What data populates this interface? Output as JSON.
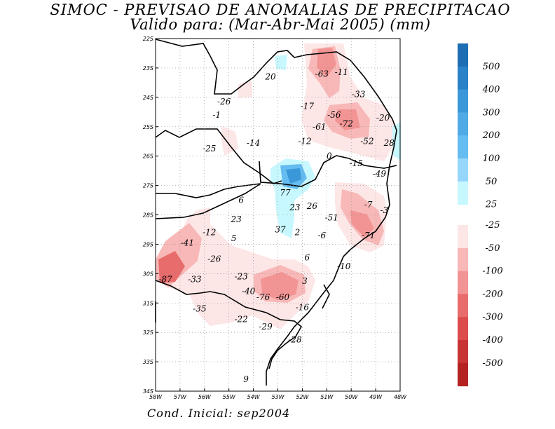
{
  "header": {
    "title_line1": "SIMOC - PREVISAO DE ANOMALIAS DE PRECIPITACAO",
    "title_line2": "Valido para: (Mar-Abr-Mai 2005) (mm)"
  },
  "footer": {
    "initial_condition": "Cond. Inicial: sep2004"
  },
  "map": {
    "lon_range": [
      -58,
      -48
    ],
    "lat_range": [
      -34,
      -22
    ],
    "lon_ticks": [
      "58W",
      "57W",
      "56W",
      "55W",
      "54W",
      "53W",
      "52W",
      "51W",
      "50W",
      "49W",
      "48W"
    ],
    "lat_ticks": [
      "22S",
      "23S",
      "24S",
      "25S",
      "26S",
      "27S",
      "28S",
      "29S",
      "30S",
      "31S",
      "32S",
      "33S",
      "34S"
    ],
    "grid": true,
    "anomaly_labels": [
      {
        "text": "20",
        "lon": -53.3,
        "lat": -23.3
      },
      {
        "text": "-63",
        "lon": -51.2,
        "lat": -23.2
      },
      {
        "text": "-11",
        "lon": -50.4,
        "lat": -23.15
      },
      {
        "text": "-33",
        "lon": -49.7,
        "lat": -23.9
      },
      {
        "text": "-26",
        "lon": -55.2,
        "lat": -24.15
      },
      {
        "text": "-17",
        "lon": -51.8,
        "lat": -24.3
      },
      {
        "text": "-1",
        "lon": -55.5,
        "lat": -24.6
      },
      {
        "text": "-56",
        "lon": -50.7,
        "lat": -24.6
      },
      {
        "text": "-20",
        "lon": -48.7,
        "lat": -24.7
      },
      {
        "text": "-61",
        "lon": -51.3,
        "lat": -25.0
      },
      {
        "text": "-72",
        "lon": -50.2,
        "lat": -24.9
      },
      {
        "text": "-14",
        "lon": -54.0,
        "lat": -25.55
      },
      {
        "text": "-12",
        "lon": -51.9,
        "lat": -25.5
      },
      {
        "text": "-52",
        "lon": -49.35,
        "lat": -25.5
      },
      {
        "text": "-25",
        "lon": -55.8,
        "lat": -25.75
      },
      {
        "text": "28",
        "lon": -48.45,
        "lat": -25.55
      },
      {
        "text": "0",
        "lon": -50.9,
        "lat": -26.0
      },
      {
        "text": "-15",
        "lon": -49.8,
        "lat": -26.25
      },
      {
        "text": "-49",
        "lon": -48.85,
        "lat": -26.6
      },
      {
        "text": "77",
        "lon": -52.7,
        "lat": -27.25
      },
      {
        "text": "6",
        "lon": -54.5,
        "lat": -27.5
      },
      {
        "text": "23",
        "lon": -52.3,
        "lat": -27.75
      },
      {
        "text": "26",
        "lon": -51.6,
        "lat": -27.7
      },
      {
        "text": "-7",
        "lon": -49.3,
        "lat": -27.65
      },
      {
        "text": "-3",
        "lon": -48.65,
        "lat": -27.85
      },
      {
        "text": "-51",
        "lon": -50.8,
        "lat": -28.1
      },
      {
        "text": "23",
        "lon": -54.7,
        "lat": -28.15
      },
      {
        "text": "37",
        "lon": -52.9,
        "lat": -28.5
      },
      {
        "text": "-12",
        "lon": -55.8,
        "lat": -28.6
      },
      {
        "text": "2",
        "lon": -52.2,
        "lat": -28.6
      },
      {
        "text": "-6",
        "lon": -51.2,
        "lat": -28.7
      },
      {
        "text": "-71",
        "lon": -49.3,
        "lat": -28.7
      },
      {
        "text": "5",
        "lon": -54.8,
        "lat": -28.8
      },
      {
        "text": "-41",
        "lon": -56.7,
        "lat": -28.95
      },
      {
        "text": "-26",
        "lon": -55.6,
        "lat": -29.5
      },
      {
        "text": "6",
        "lon": -51.8,
        "lat": -29.45
      },
      {
        "text": "-10",
        "lon": -50.3,
        "lat": -29.75
      },
      {
        "text": "-23",
        "lon": -54.5,
        "lat": -30.1
      },
      {
        "text": "-87",
        "lon": -57.6,
        "lat": -30.2
      },
      {
        "text": "-33",
        "lon": -56.4,
        "lat": -30.2
      },
      {
        "text": "3",
        "lon": -51.9,
        "lat": -30.25
      },
      {
        "text": "-40",
        "lon": -54.2,
        "lat": -30.6
      },
      {
        "text": "-76",
        "lon": -53.6,
        "lat": -30.8
      },
      {
        "text": "-60",
        "lon": -52.8,
        "lat": -30.8
      },
      {
        "text": "-16",
        "lon": -52.0,
        "lat": -31.15
      },
      {
        "text": "-35",
        "lon": -56.2,
        "lat": -31.2
      },
      {
        "text": "-22",
        "lon": -54.5,
        "lat": -31.55
      },
      {
        "text": "-29",
        "lon": -53.5,
        "lat": -31.8
      },
      {
        "text": "-28",
        "lon": -52.3,
        "lat": -32.25
      },
      {
        "text": "9",
        "lon": -54.3,
        "lat": -33.6
      }
    ]
  },
  "legend": {
    "positive": [
      {
        "label": "500",
        "color": "#1e6eb4"
      },
      {
        "label": "400",
        "color": "#2a82c8"
      },
      {
        "label": "300",
        "color": "#3a98d8"
      },
      {
        "label": "200",
        "color": "#50aae6"
      },
      {
        "label": "100",
        "color": "#64bcf0"
      },
      {
        "label": "50",
        "color": "#96d6fa"
      },
      {
        "label": "25",
        "color": "#c8f8ff"
      }
    ],
    "negative": [
      {
        "label": "-25",
        "color": "#fde6e6"
      },
      {
        "label": "-50",
        "color": "#f8b8b8"
      },
      {
        "label": "-100",
        "color": "#f29494"
      },
      {
        "label": "-200",
        "color": "#e86c6c"
      },
      {
        "label": "-300",
        "color": "#dc4c4c"
      },
      {
        "label": "-400",
        "color": "#c83434"
      },
      {
        "label": "-500",
        "color": "#b42222"
      }
    ]
  }
}
